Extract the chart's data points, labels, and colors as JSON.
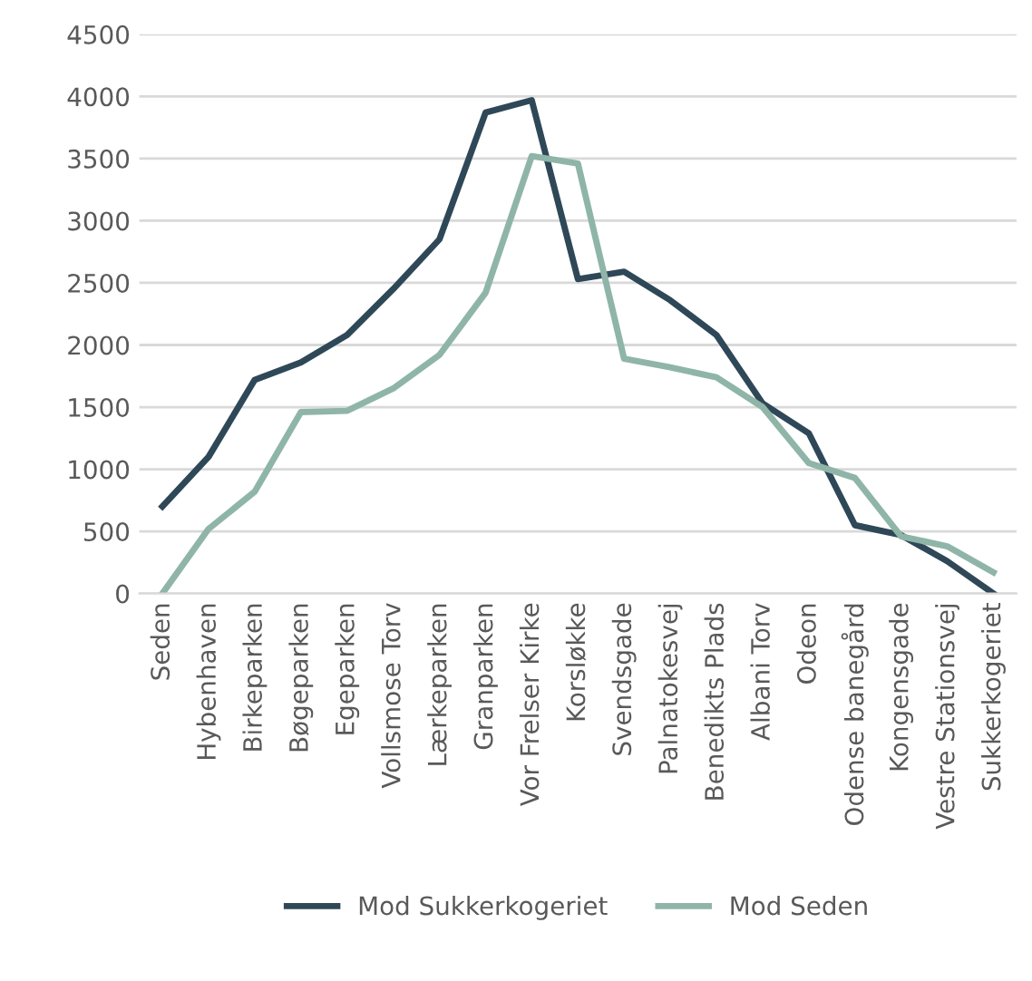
{
  "chart_data": {
    "type": "line",
    "categories": [
      "Seden",
      "Hybenhaven",
      "Birkeparken",
      "Bøgeparken",
      "Egeparken",
      "Vollsmose Torv",
      "Lærkeparken",
      "Granparken",
      "Vor Frelser Kirke",
      "Korsløkke",
      "Svendsgade",
      "Palnatokesvej",
      "Benedikts Plads",
      "Albani Torv",
      "Odeon",
      "Odense banegård",
      "Kongensgade",
      "Vestre Stationsvej",
      "Sukkerkogeriet"
    ],
    "series": [
      {
        "name": "Mod Sukkerkogeriet",
        "color": "#2f4858",
        "values": [
          700,
          1100,
          1720,
          1860,
          2080,
          2450,
          2850,
          3870,
          3970,
          2530,
          2590,
          2360,
          2080,
          1530,
          1290,
          550,
          470,
          260,
          0
        ]
      },
      {
        "name": "Mod Seden",
        "color": "#8fb5a8",
        "values": [
          0,
          520,
          820,
          1460,
          1470,
          1650,
          1920,
          2420,
          3520,
          3460,
          1890,
          1820,
          1740,
          1500,
          1050,
          930,
          460,
          380,
          170
        ]
      }
    ],
    "ylim": [
      0,
      4500
    ],
    "yticks": [
      0,
      500,
      1000,
      1500,
      2000,
      2500,
      3000,
      3500,
      4000,
      4500
    ],
    "grid": "y",
    "legend": "bottom",
    "marker": "none",
    "line_style": "solid"
  }
}
